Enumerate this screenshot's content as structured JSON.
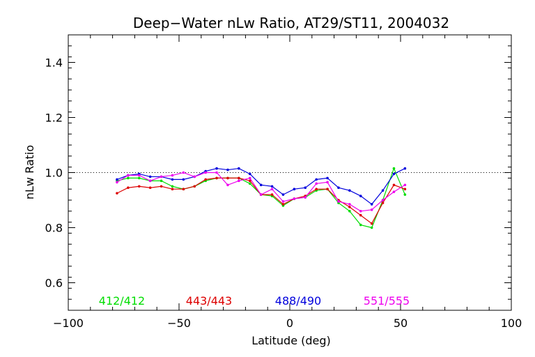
{
  "chart_data": {
    "type": "line",
    "title": "Deep−Water nLw Ratio, AT29/ST11, 2004032",
    "xlabel": "Latitude (deg)",
    "ylabel": "nLw Ratio",
    "xlim": [
      -100,
      100
    ],
    "ylim": [
      0.5,
      1.5
    ],
    "xticks": [
      -100,
      -50,
      0,
      50,
      100
    ],
    "xtick_labels": [
      "−100",
      "−50",
      "0",
      "50",
      "100"
    ],
    "yticks": [
      0.6,
      0.8,
      1.0,
      1.2,
      1.4
    ],
    "ytick_labels": [
      "0.6",
      "0.8",
      "1.0",
      "1.2",
      "1.4"
    ],
    "reference_line": 1.0,
    "grid": false,
    "legend_placement": "bottom",
    "x": [
      -78,
      -73,
      -68,
      -63,
      -58,
      -53,
      -48,
      -43,
      -38,
      -33,
      -28,
      -23,
      -18,
      -13,
      -8,
      -3,
      2,
      7,
      12,
      17,
      22,
      27,
      32,
      37,
      42,
      47,
      52
    ],
    "series": [
      {
        "name": "412/412",
        "color": "#00dd00",
        "values": [
          0.97,
          0.98,
          0.98,
          0.97,
          0.97,
          0.95,
          0.94,
          0.95,
          0.97,
          0.98,
          0.98,
          0.98,
          0.96,
          0.92,
          0.915,
          0.88,
          0.905,
          0.91,
          0.935,
          0.94,
          0.89,
          0.86,
          0.81,
          0.8,
          0.9,
          1.015,
          0.92
        ]
      },
      {
        "name": "443/443",
        "color": "#dd0000",
        "values": [
          0.925,
          0.945,
          0.95,
          0.945,
          0.95,
          0.94,
          0.94,
          0.95,
          0.975,
          0.98,
          0.98,
          0.98,
          0.97,
          0.92,
          0.92,
          0.885,
          0.905,
          0.915,
          0.94,
          0.94,
          0.9,
          0.875,
          0.845,
          0.815,
          0.89,
          0.955,
          0.94
        ]
      },
      {
        "name": "488/490",
        "color": "#0000dd",
        "values": [
          0.975,
          0.99,
          0.995,
          0.985,
          0.985,
          0.975,
          0.975,
          0.985,
          1.005,
          1.015,
          1.01,
          1.015,
          0.995,
          0.955,
          0.95,
          0.92,
          0.94,
          0.945,
          0.975,
          0.98,
          0.945,
          0.935,
          0.915,
          0.885,
          0.935,
          0.995,
          1.015
        ]
      },
      {
        "name": "551/555",
        "color": "#ee00ee",
        "values": [
          0.965,
          0.99,
          0.99,
          0.97,
          0.985,
          0.99,
          1.0,
          0.985,
          1.0,
          1.0,
          0.955,
          0.97,
          0.98,
          0.92,
          0.94,
          0.895,
          0.905,
          0.91,
          0.96,
          0.965,
          0.895,
          0.885,
          0.86,
          0.865,
          0.9,
          0.93,
          0.955
        ]
      }
    ]
  }
}
